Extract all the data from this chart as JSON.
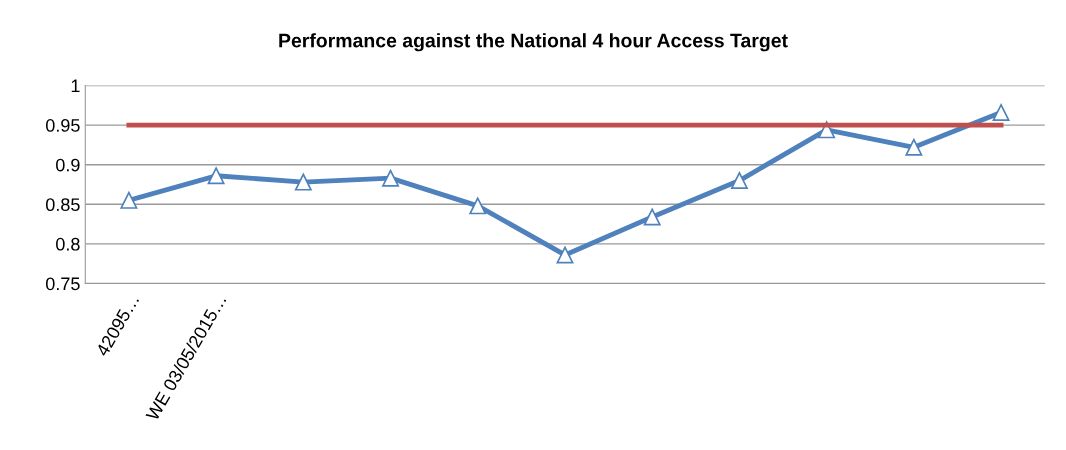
{
  "chart_data": {
    "type": "line",
    "title": "Performance against the National 4 hour Access Target",
    "categories": [
      "42095…",
      "WE 03/05/2015…",
      null,
      null,
      null,
      null,
      null,
      null,
      null,
      null,
      null
    ],
    "series": [
      {
        "color": "#4f81bd",
        "marker": "triangle",
        "values": [
          0.855,
          0.886,
          0.878,
          0.883,
          0.848,
          0.786,
          0.834,
          0.88,
          0.944,
          0.922,
          0.966
        ]
      },
      {
        "color": "#c0504d",
        "marker": "none",
        "values": [
          0.95,
          0.95,
          0.95,
          0.95,
          0.95,
          0.95,
          0.95,
          0.95,
          0.95,
          0.95,
          0.95
        ]
      }
    ],
    "ylim": [
      0.75,
      1
    ],
    "yticks": [
      0.75,
      0.8,
      0.85,
      0.9,
      0.95,
      1
    ],
    "grid": "y",
    "legend": false,
    "line_style": "solid"
  }
}
